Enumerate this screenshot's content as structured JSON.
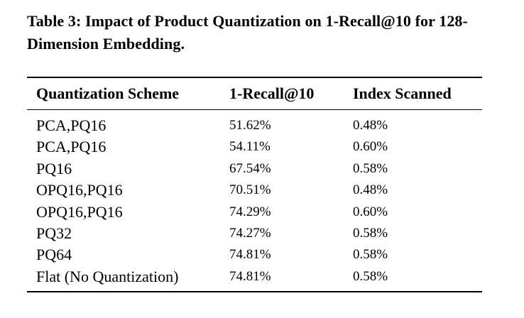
{
  "caption": "Table 3: Impact of Product Quantization on 1-Recall@10 for 128-Dimension Embedding.",
  "table": {
    "headers": [
      "Quantization Scheme",
      "1-Recall@10",
      "Index Scanned"
    ],
    "rows": [
      [
        "PCA,PQ16",
        "51.62%",
        "0.48%"
      ],
      [
        "PCA,PQ16",
        "54.11%",
        "0.60%"
      ],
      [
        "PQ16",
        "67.54%",
        "0.58%"
      ],
      [
        "OPQ16,PQ16",
        "70.51%",
        "0.48%"
      ],
      [
        "OPQ16,PQ16",
        "74.29%",
        "0.60%"
      ],
      [
        "PQ32",
        "74.27%",
        "0.58%"
      ],
      [
        "PQ64",
        "74.81%",
        "0.58%"
      ],
      [
        "Flat (No Quantization)",
        "74.81%",
        "0.58%"
      ]
    ]
  }
}
